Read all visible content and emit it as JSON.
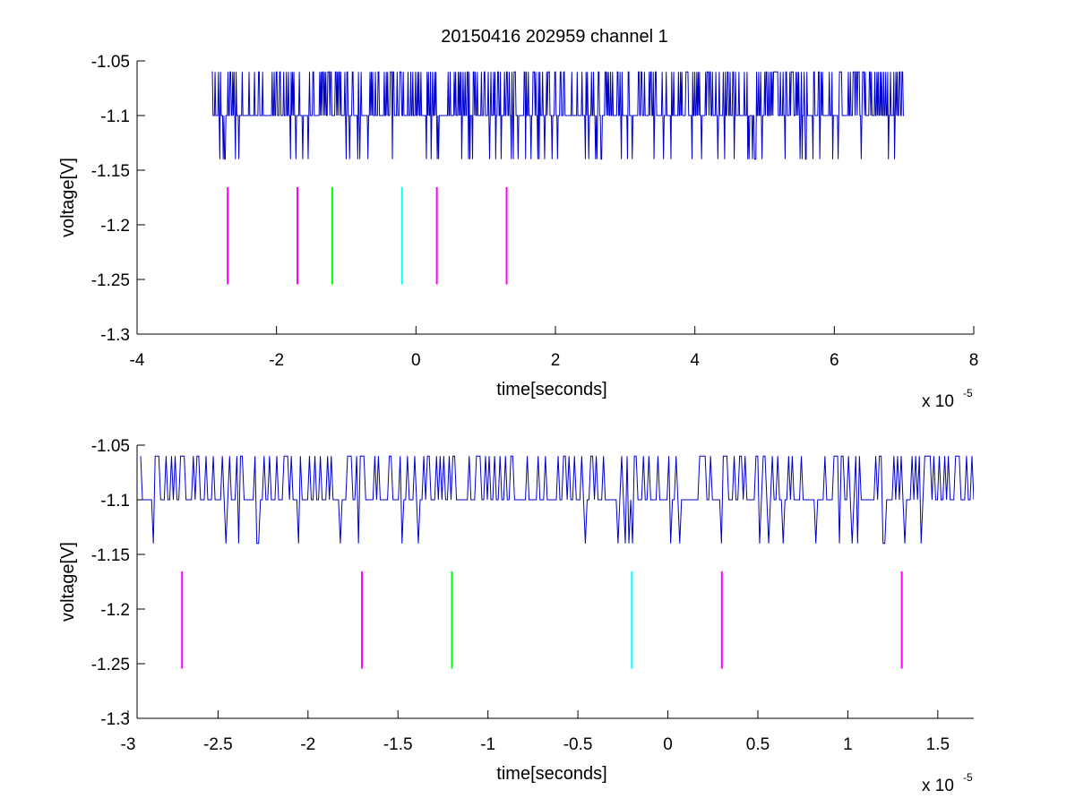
{
  "figure": {
    "title": "20150416 202959 channel 1"
  },
  "chart_data": [
    {
      "type": "line",
      "xlabel": "time[seconds]",
      "ylabel": "voltage[V]",
      "x_exponent_label": "x 10",
      "x_exponent_power": "-5",
      "xlim": [
        -4e-05,
        8e-05
      ],
      "ylim": [
        -1.3,
        -1.05
      ],
      "xticks": [
        -4e-05,
        -2e-05,
        0,
        2e-05,
        4e-05,
        6e-05,
        8e-05
      ],
      "xtick_labels": [
        "-4",
        "-2",
        "0",
        "2",
        "4",
        "6",
        "8"
      ],
      "yticks": [
        -1.3,
        -1.25,
        -1.2,
        -1.15,
        -1.1,
        -1.05
      ],
      "ytick_labels": [
        "-1.3",
        "-1.25",
        "-1.2",
        "-1.15",
        "-1.1",
        "-1.05"
      ],
      "grid": false,
      "series": [
        {
          "color": "#0000cc",
          "style": "line",
          "x_start": -2.93e-05,
          "x_end": 7e-05,
          "samples": 1020,
          "values_description_levels": [
            -1.06,
            -1.1,
            -1.14
          ]
        }
      ],
      "markers": [
        {
          "x": -2.7e-05,
          "y_range": [
            -1.2545,
            -1.1655
          ],
          "color": "#ff00ff"
        },
        {
          "x": -1.7e-05,
          "y_range": [
            -1.2545,
            -1.1655
          ],
          "color": "#ff00ff"
        },
        {
          "x": -1.2e-05,
          "y_range": [
            -1.2545,
            -1.1655
          ],
          "color": "#00ff00"
        },
        {
          "x": -2e-06,
          "y_range": [
            -1.2545,
            -1.1655
          ],
          "color": "#00ffff"
        },
        {
          "x": 3e-06,
          "y_range": [
            -1.2545,
            -1.1655
          ],
          "color": "#ff00ff"
        },
        {
          "x": 1.3e-05,
          "y_range": [
            -1.2545,
            -1.1655
          ],
          "color": "#ff00ff"
        }
      ]
    },
    {
      "type": "line",
      "xlabel": "time[seconds]",
      "ylabel": "voltage[V]",
      "x_exponent_label": "x 10",
      "x_exponent_power": "-5",
      "xlim": [
        -2.95e-05,
        1.7e-05
      ],
      "ylim": [
        -1.3,
        -1.05
      ],
      "xticks": [
        -3e-05,
        -2.5e-05,
        -2e-05,
        -1.5e-05,
        -1e-05,
        -5e-06,
        0,
        5e-06,
        1e-05,
        1.5e-05
      ],
      "xtick_labels": [
        "-3",
        "-2.5",
        "-2",
        "-1.5",
        "-1",
        "-0.5",
        "0",
        "0.5",
        "1",
        "1.5"
      ],
      "yticks": [
        -1.3,
        -1.25,
        -1.2,
        -1.15,
        -1.1,
        -1.05
      ],
      "ytick_labels": [
        "-1.3",
        "-1.25",
        "-1.2",
        "-1.15",
        "-1.1",
        "-1.05"
      ],
      "grid": false,
      "series": [
        {
          "color": "#0000cc",
          "style": "line",
          "x_start": -2.93e-05,
          "x_end": 1.7e-05,
          "samples": 460,
          "values_description_levels": [
            -1.06,
            -1.1,
            -1.14
          ]
        }
      ],
      "markers": [
        {
          "x": -2.7e-05,
          "y_range": [
            -1.2545,
            -1.1655
          ],
          "color": "#ff00ff"
        },
        {
          "x": -1.7e-05,
          "y_range": [
            -1.2545,
            -1.1655
          ],
          "color": "#ff00ff"
        },
        {
          "x": -1.2e-05,
          "y_range": [
            -1.2545,
            -1.1655
          ],
          "color": "#00ff00"
        },
        {
          "x": -2e-06,
          "y_range": [
            -1.2545,
            -1.1655
          ],
          "color": "#00ffff"
        },
        {
          "x": 3e-06,
          "y_range": [
            -1.2545,
            -1.1655
          ],
          "color": "#ff00ff"
        },
        {
          "x": 1.3e-05,
          "y_range": [
            -1.2545,
            -1.1655
          ],
          "color": "#ff00ff"
        }
      ]
    }
  ]
}
